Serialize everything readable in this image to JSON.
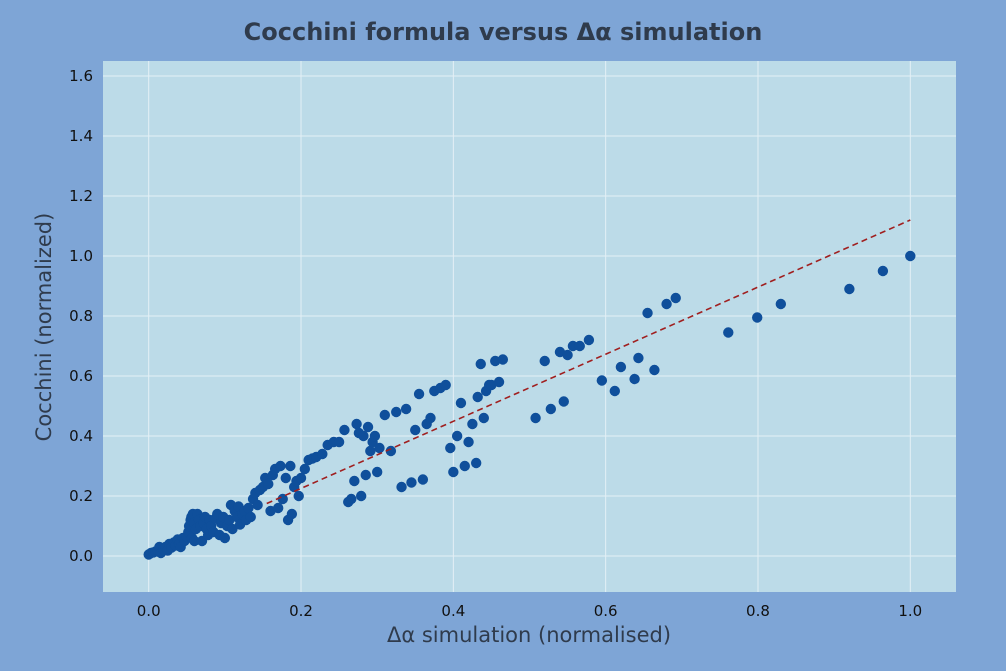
{
  "colors": {
    "frame_bg": "#7ea5d6",
    "plot_bg": "#bcdbe8",
    "grid": "#e4f0f6",
    "marker": "#0f4f9b",
    "fit_line": "#a01f1f"
  },
  "chart_data": {
    "type": "scatter",
    "title": "Cocchini formula versus Δα simulation",
    "xlabel": "Δα simulation (normalised)",
    "ylabel": "Cocchini (normalized)",
    "xlim": [
      -0.06,
      1.06
    ],
    "ylim": [
      -0.12,
      1.65
    ],
    "xticks": [
      "0.0",
      "0.2",
      "0.4",
      "0.6",
      "0.8",
      "1.0"
    ],
    "yticks": [
      "0.0",
      "0.2",
      "0.4",
      "0.6",
      "0.8",
      "1.0",
      "1.2",
      "1.4",
      "1.6"
    ],
    "grid": true,
    "fit_line": {
      "style": "dashed",
      "x": [
        0.155,
        1.0
      ],
      "y": [
        0.175,
        1.12
      ]
    },
    "points": [
      [
        0.0,
        0.005
      ],
      [
        0.003,
        0.01
      ],
      [
        0.006,
        0.012
      ],
      [
        0.009,
        0.015
      ],
      [
        0.012,
        0.018
      ],
      [
        0.014,
        0.03
      ],
      [
        0.016,
        0.01
      ],
      [
        0.019,
        0.022
      ],
      [
        0.022,
        0.03
      ],
      [
        0.025,
        0.018
      ],
      [
        0.027,
        0.04
      ],
      [
        0.03,
        0.028
      ],
      [
        0.033,
        0.045
      ],
      [
        0.035,
        0.035
      ],
      [
        0.038,
        0.055
      ],
      [
        0.04,
        0.04
      ],
      [
        0.042,
        0.03
      ],
      [
        0.045,
        0.06
      ],
      [
        0.047,
        0.05
      ],
      [
        0.05,
        0.065
      ],
      [
        0.052,
        0.08
      ],
      [
        0.053,
        0.1
      ],
      [
        0.055,
        0.12
      ],
      [
        0.056,
        0.13
      ],
      [
        0.057,
        0.06
      ],
      [
        0.058,
        0.14
      ],
      [
        0.06,
        0.11
      ],
      [
        0.06,
        0.05
      ],
      [
        0.062,
        0.09
      ],
      [
        0.064,
        0.14
      ],
      [
        0.066,
        0.12
      ],
      [
        0.068,
        0.1
      ],
      [
        0.07,
        0.05
      ],
      [
        0.072,
        0.11
      ],
      [
        0.074,
        0.13
      ],
      [
        0.076,
        0.09
      ],
      [
        0.078,
        0.07
      ],
      [
        0.08,
        0.12
      ],
      [
        0.082,
        0.1
      ],
      [
        0.085,
        0.08
      ],
      [
        0.088,
        0.125
      ],
      [
        0.09,
        0.14
      ],
      [
        0.093,
        0.07
      ],
      [
        0.095,
        0.11
      ],
      [
        0.098,
        0.13
      ],
      [
        0.1,
        0.06
      ],
      [
        0.103,
        0.1
      ],
      [
        0.106,
        0.12
      ],
      [
        0.108,
        0.17
      ],
      [
        0.11,
        0.09
      ],
      [
        0.113,
        0.15
      ],
      [
        0.116,
        0.13
      ],
      [
        0.118,
        0.165
      ],
      [
        0.12,
        0.105
      ],
      [
        0.123,
        0.14
      ],
      [
        0.126,
        0.15
      ],
      [
        0.128,
        0.12
      ],
      [
        0.131,
        0.16
      ],
      [
        0.134,
        0.13
      ],
      [
        0.137,
        0.19
      ],
      [
        0.14,
        0.21
      ],
      [
        0.143,
        0.17
      ],
      [
        0.146,
        0.22
      ],
      [
        0.15,
        0.23
      ],
      [
        0.153,
        0.26
      ],
      [
        0.157,
        0.24
      ],
      [
        0.16,
        0.15
      ],
      [
        0.163,
        0.27
      ],
      [
        0.166,
        0.29
      ],
      [
        0.17,
        0.16
      ],
      [
        0.173,
        0.3
      ],
      [
        0.176,
        0.19
      ],
      [
        0.18,
        0.26
      ],
      [
        0.183,
        0.12
      ],
      [
        0.186,
        0.3
      ],
      [
        0.188,
        0.14
      ],
      [
        0.191,
        0.23
      ],
      [
        0.194,
        0.25
      ],
      [
        0.197,
        0.2
      ],
      [
        0.2,
        0.26
      ],
      [
        0.205,
        0.29
      ],
      [
        0.21,
        0.32
      ],
      [
        0.215,
        0.325
      ],
      [
        0.22,
        0.33
      ],
      [
        0.228,
        0.34
      ],
      [
        0.235,
        0.37
      ],
      [
        0.243,
        0.38
      ],
      [
        0.25,
        0.38
      ],
      [
        0.257,
        0.42
      ],
      [
        0.262,
        0.18
      ],
      [
        0.266,
        0.19
      ],
      [
        0.27,
        0.25
      ],
      [
        0.273,
        0.44
      ],
      [
        0.276,
        0.41
      ],
      [
        0.279,
        0.2
      ],
      [
        0.282,
        0.4
      ],
      [
        0.285,
        0.27
      ],
      [
        0.288,
        0.43
      ],
      [
        0.291,
        0.35
      ],
      [
        0.294,
        0.38
      ],
      [
        0.297,
        0.4
      ],
      [
        0.3,
        0.28
      ],
      [
        0.303,
        0.36
      ],
      [
        0.31,
        0.47
      ],
      [
        0.318,
        0.35
      ],
      [
        0.325,
        0.48
      ],
      [
        0.332,
        0.23
      ],
      [
        0.338,
        0.49
      ],
      [
        0.345,
        0.245
      ],
      [
        0.35,
        0.42
      ],
      [
        0.355,
        0.54
      ],
      [
        0.36,
        0.255
      ],
      [
        0.365,
        0.44
      ],
      [
        0.37,
        0.46
      ],
      [
        0.375,
        0.55
      ],
      [
        0.383,
        0.56
      ],
      [
        0.39,
        0.57
      ],
      [
        0.396,
        0.36
      ],
      [
        0.4,
        0.28
      ],
      [
        0.405,
        0.4
      ],
      [
        0.41,
        0.51
      ],
      [
        0.415,
        0.3
      ],
      [
        0.42,
        0.38
      ],
      [
        0.425,
        0.44
      ],
      [
        0.43,
        0.31
      ],
      [
        0.432,
        0.53
      ],
      [
        0.436,
        0.64
      ],
      [
        0.44,
        0.46
      ],
      [
        0.443,
        0.55
      ],
      [
        0.447,
        0.57
      ],
      [
        0.45,
        0.57
      ],
      [
        0.455,
        0.65
      ],
      [
        0.46,
        0.58
      ],
      [
        0.465,
        0.655
      ],
      [
        0.508,
        0.46
      ],
      [
        0.52,
        0.65
      ],
      [
        0.528,
        0.49
      ],
      [
        0.54,
        0.68
      ],
      [
        0.545,
        0.515
      ],
      [
        0.55,
        0.67
      ],
      [
        0.557,
        0.7
      ],
      [
        0.566,
        0.7
      ],
      [
        0.578,
        0.72
      ],
      [
        0.595,
        0.585
      ],
      [
        0.612,
        0.55
      ],
      [
        0.62,
        0.63
      ],
      [
        0.638,
        0.59
      ],
      [
        0.643,
        0.66
      ],
      [
        0.655,
        0.81
      ],
      [
        0.664,
        0.62
      ],
      [
        0.68,
        0.84
      ],
      [
        0.692,
        0.86
      ],
      [
        0.761,
        0.745
      ],
      [
        0.799,
        0.795
      ],
      [
        0.83,
        0.84
      ],
      [
        0.92,
        0.89
      ],
      [
        0.964,
        0.95
      ],
      [
        1.0,
        1.0
      ]
    ]
  }
}
